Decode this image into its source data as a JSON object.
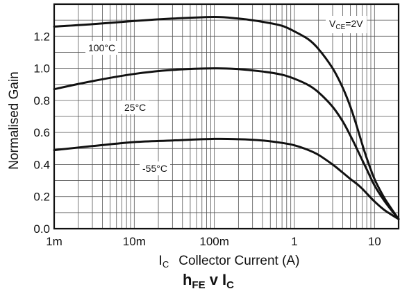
{
  "chart_data": {
    "type": "line",
    "title": "h_FE v I_C",
    "title_parts": {
      "main": "h",
      "sub1": "FE",
      "mid": " v I",
      "sub2": "C"
    },
    "xlabel": "I_C Collector Current (A)",
    "xlabel_parts": {
      "main": "I",
      "sub": "C",
      "rest": "Collector Current (A)"
    },
    "ylabel": "Normalised Gain",
    "x_scale": "log",
    "xlim": [
      0.001,
      20
    ],
    "ylim": [
      0,
      1.4
    ],
    "x_ticks": [
      0.001,
      0.01,
      0.1,
      1,
      10
    ],
    "x_tick_labels": [
      "1m",
      "10m",
      "100m",
      "1",
      "10"
    ],
    "y_ticks": [
      0,
      0.2,
      0.4,
      0.6,
      0.8,
      1.0,
      1.2
    ],
    "y_tick_labels": [
      "0.0",
      "0.2",
      "0.4",
      "0.6",
      "0.8",
      "1.0",
      "1.2"
    ],
    "grid": true,
    "annotation": {
      "main": "V",
      "sub": "CE",
      "rest": "=2V"
    },
    "series": [
      {
        "name": "100°C",
        "x": [
          0.001,
          0.003,
          0.01,
          0.03,
          0.1,
          0.2,
          0.4,
          0.7,
          1,
          1.5,
          2,
          3,
          4,
          5,
          6,
          7,
          8,
          10,
          13,
          16,
          20
        ],
        "y": [
          1.26,
          1.275,
          1.295,
          1.31,
          1.32,
          1.31,
          1.29,
          1.265,
          1.23,
          1.18,
          1.12,
          1.0,
          0.88,
          0.76,
          0.64,
          0.53,
          0.44,
          0.31,
          0.2,
          0.13,
          0.06
        ]
      },
      {
        "name": "25°C",
        "x": [
          0.001,
          0.003,
          0.01,
          0.03,
          0.1,
          0.2,
          0.4,
          0.7,
          1,
          1.5,
          2,
          3,
          4,
          5,
          6,
          7,
          8,
          10,
          13,
          16,
          20
        ],
        "y": [
          0.87,
          0.92,
          0.965,
          0.99,
          1.0,
          0.995,
          0.98,
          0.96,
          0.935,
          0.895,
          0.85,
          0.76,
          0.67,
          0.58,
          0.5,
          0.43,
          0.37,
          0.27,
          0.18,
          0.12,
          0.06
        ]
      },
      {
        "name": "-55°C",
        "x": [
          0.001,
          0.003,
          0.01,
          0.03,
          0.1,
          0.2,
          0.4,
          0.7,
          1,
          1.5,
          2,
          3,
          4,
          5,
          6,
          7,
          8,
          10,
          13,
          16,
          20
        ],
        "y": [
          0.49,
          0.515,
          0.54,
          0.55,
          0.56,
          0.558,
          0.55,
          0.535,
          0.52,
          0.49,
          0.46,
          0.4,
          0.35,
          0.31,
          0.28,
          0.25,
          0.22,
          0.17,
          0.12,
          0.09,
          0.06
        ]
      }
    ]
  }
}
